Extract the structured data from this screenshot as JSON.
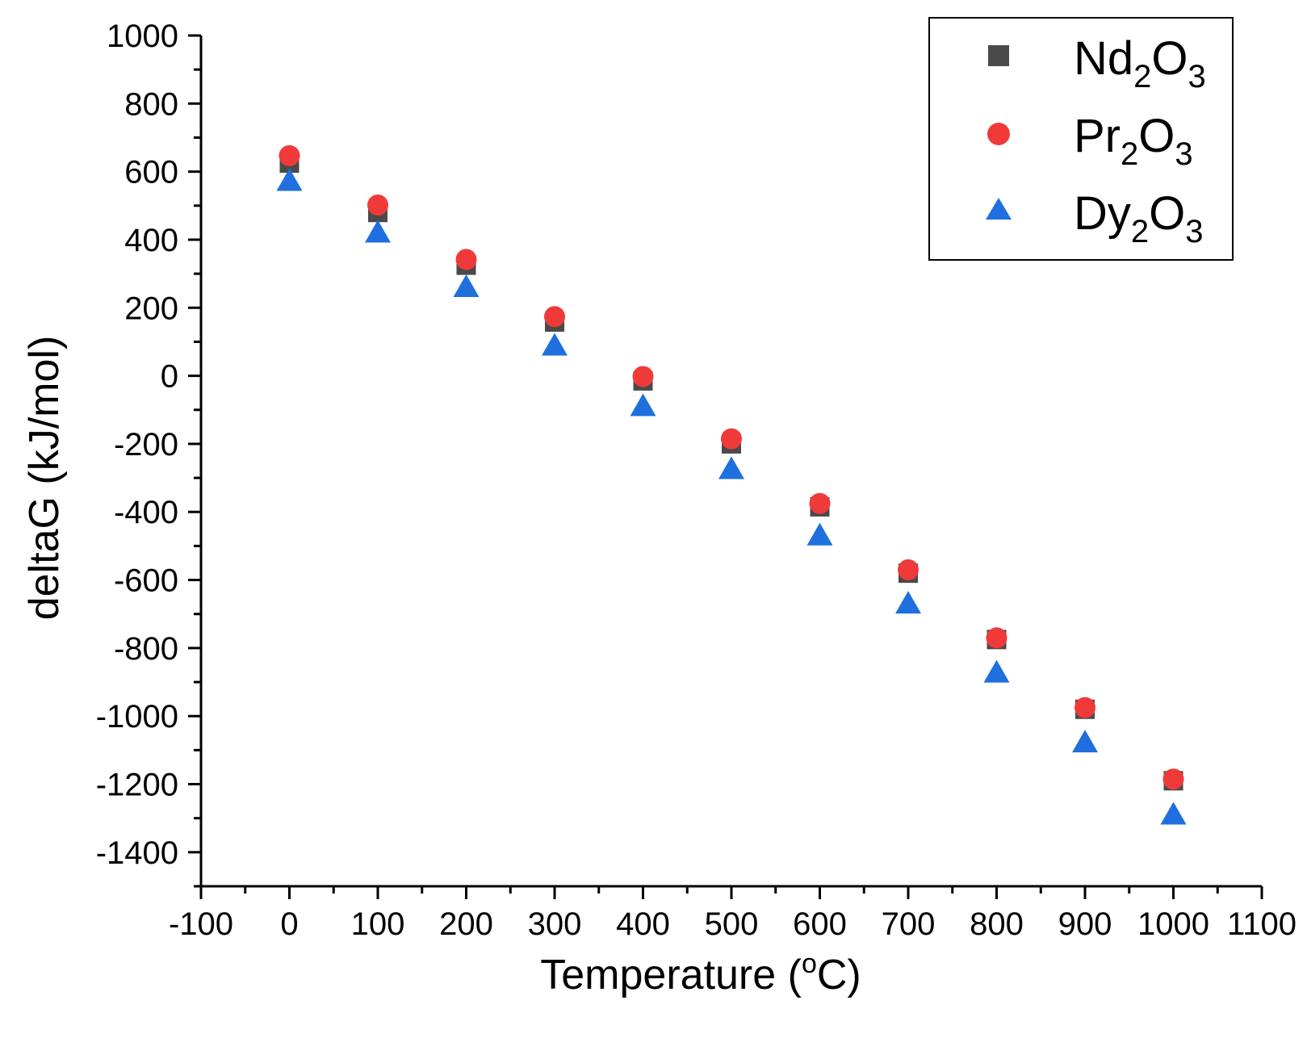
{
  "chart_data": {
    "type": "scatter",
    "title": "",
    "xlabel": "Temperature (oC)",
    "xlabel_main": "Temperature (",
    "xlabel_degree": "o",
    "xlabel_unit": "C)",
    "ylabel": "deltaG (kJ/mol)",
    "xlim": [
      -100,
      1100
    ],
    "ylim": [
      -1500,
      1000
    ],
    "x_ticks": [
      -100,
      0,
      100,
      200,
      300,
      400,
      500,
      600,
      700,
      800,
      900,
      1000,
      1100
    ],
    "y_ticks": [
      -1400,
      -1200,
      -1000,
      -800,
      -600,
      -400,
      -200,
      0,
      200,
      400,
      600,
      800,
      1000
    ],
    "grid": false,
    "legend_position": "top-right",
    "x": [
      0,
      100,
      200,
      300,
      400,
      500,
      600,
      700,
      800,
      900,
      1000
    ],
    "series": [
      {
        "name": "Nd2O3",
        "label_base": "Nd",
        "label_sub1": "2",
        "label_mid": "O",
        "label_sub2": "3",
        "marker": "square",
        "color": "#4a4a4a",
        "values": [
          625,
          480,
          325,
          158,
          -15,
          -200,
          -385,
          -580,
          -775,
          -980,
          -1190
        ]
      },
      {
        "name": "Pr2O3",
        "label_base": "Pr",
        "label_sub1": "2",
        "label_mid": "O",
        "label_sub2": "3",
        "marker": "circle",
        "color": "#f03a3a",
        "values": [
          647,
          502,
          342,
          174,
          -2,
          -185,
          -375,
          -570,
          -770,
          -975,
          -1185
        ]
      },
      {
        "name": "Dy2O3",
        "label_base": "Dy",
        "label_sub1": "2",
        "label_mid": "O",
        "label_sub2": "3",
        "marker": "triangle",
        "color": "#1f6fdf",
        "values": [
          572,
          420,
          260,
          88,
          -90,
          -275,
          -470,
          -670,
          -873,
          -1078,
          -1290
        ]
      }
    ]
  }
}
